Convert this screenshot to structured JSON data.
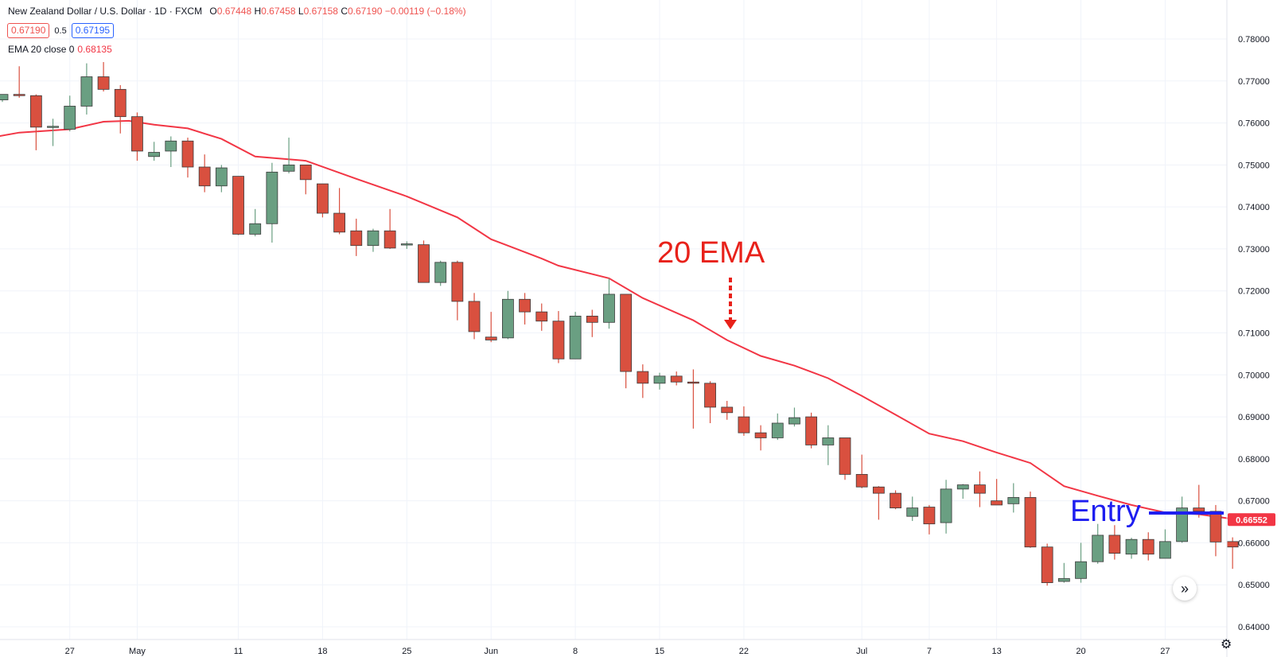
{
  "header": {
    "symbol": "New Zealand Dollar / U.S. Dollar · 1D · FXCM",
    "open_label": "O",
    "open": "0.67448",
    "high_label": "H",
    "high": "0.67458",
    "low_label": "L",
    "low": "0.67158",
    "close_label": "C",
    "close": "0.67190",
    "change": "−0.00119 (−0.18%)"
  },
  "quote": {
    "sell": "0.67190",
    "spread": "0.5",
    "buy": "0.67195"
  },
  "indicator": {
    "label": "EMA 20 close 0",
    "value": "0.68135"
  },
  "annotations": {
    "ema_label": "20 EMA",
    "entry_label": "Entry",
    "entry_price": 0.6671
  },
  "last_price_label": "0.66552",
  "colors": {
    "up": "#6a9f82",
    "down": "#d9503f",
    "ema": "#f23645",
    "entry": "#1e1ef0",
    "grid": "#f0f3fa",
    "annotation_red": "#e8211a"
  },
  "icons": {
    "scroll_right": "double-chevron-right-icon",
    "settings": "gear-icon"
  },
  "chart_data": {
    "type": "candlestick",
    "ylim": [
      0.635,
      0.7825
    ],
    "yticks": [
      "0.78000",
      "0.77000",
      "0.76000",
      "0.75000",
      "0.74000",
      "0.73000",
      "0.72000",
      "0.71000",
      "0.70000",
      "0.69000",
      "0.68000",
      "0.67000",
      "0.66000",
      "0.65000",
      "0.64000"
    ],
    "xticks": [
      {
        "label": "27",
        "i": 4
      },
      {
        "label": "May",
        "i": 8
      },
      {
        "label": "11",
        "i": 14
      },
      {
        "label": "18",
        "i": 19
      },
      {
        "label": "25",
        "i": 24
      },
      {
        "label": "Jun",
        "i": 29
      },
      {
        "label": "8",
        "i": 34
      },
      {
        "label": "15",
        "i": 39
      },
      {
        "label": "22",
        "i": 44
      },
      {
        "label": "Jul",
        "i": 51
      },
      {
        "label": "7",
        "i": 55
      },
      {
        "label": "13",
        "i": 59
      },
      {
        "label": "20",
        "i": 64
      },
      {
        "label": "27",
        "i": 69
      }
    ],
    "candles": [
      {
        "o": 0.7655,
        "h": 0.7668,
        "l": 0.765,
        "c": 0.7668
      },
      {
        "o": 0.7668,
        "h": 0.7735,
        "l": 0.766,
        "c": 0.7665
      },
      {
        "o": 0.7665,
        "h": 0.7668,
        "l": 0.7535,
        "c": 0.759
      },
      {
        "o": 0.759,
        "h": 0.761,
        "l": 0.7545,
        "c": 0.7592
      },
      {
        "o": 0.7585,
        "h": 0.7665,
        "l": 0.758,
        "c": 0.764
      },
      {
        "o": 0.764,
        "h": 0.7742,
        "l": 0.762,
        "c": 0.771
      },
      {
        "o": 0.771,
        "h": 0.7745,
        "l": 0.7675,
        "c": 0.768
      },
      {
        "o": 0.768,
        "h": 0.769,
        "l": 0.7575,
        "c": 0.7615
      },
      {
        "o": 0.7615,
        "h": 0.7625,
        "l": 0.751,
        "c": 0.7533
      },
      {
        "o": 0.752,
        "h": 0.7555,
        "l": 0.751,
        "c": 0.753
      },
      {
        "o": 0.7533,
        "h": 0.7568,
        "l": 0.7495,
        "c": 0.7557
      },
      {
        "o": 0.7557,
        "h": 0.7565,
        "l": 0.747,
        "c": 0.7495
      },
      {
        "o": 0.7495,
        "h": 0.7525,
        "l": 0.7435,
        "c": 0.745
      },
      {
        "o": 0.745,
        "h": 0.75,
        "l": 0.7435,
        "c": 0.7493
      },
      {
        "o": 0.7473,
        "h": 0.7473,
        "l": 0.7333,
        "c": 0.7335
      },
      {
        "o": 0.7335,
        "h": 0.7395,
        "l": 0.733,
        "c": 0.736
      },
      {
        "o": 0.736,
        "h": 0.7505,
        "l": 0.7315,
        "c": 0.7483
      },
      {
        "o": 0.7485,
        "h": 0.7565,
        "l": 0.748,
        "c": 0.75
      },
      {
        "o": 0.75,
        "h": 0.75,
        "l": 0.743,
        "c": 0.7465
      },
      {
        "o": 0.7455,
        "h": 0.7455,
        "l": 0.7375,
        "c": 0.7385
      },
      {
        "o": 0.7385,
        "h": 0.7445,
        "l": 0.7335,
        "c": 0.734
      },
      {
        "o": 0.7343,
        "h": 0.7372,
        "l": 0.7283,
        "c": 0.7308
      },
      {
        "o": 0.7308,
        "h": 0.7348,
        "l": 0.7293,
        "c": 0.7343
      },
      {
        "o": 0.7343,
        "h": 0.7395,
        "l": 0.73,
        "c": 0.7302
      },
      {
        "o": 0.731,
        "h": 0.7318,
        "l": 0.73,
        "c": 0.7312
      },
      {
        "o": 0.731,
        "h": 0.732,
        "l": 0.722,
        "c": 0.722
      },
      {
        "o": 0.722,
        "h": 0.7272,
        "l": 0.7212,
        "c": 0.7268
      },
      {
        "o": 0.7268,
        "h": 0.7272,
        "l": 0.713,
        "c": 0.7175
      },
      {
        "o": 0.7175,
        "h": 0.7195,
        "l": 0.7085,
        "c": 0.7103
      },
      {
        "o": 0.709,
        "h": 0.715,
        "l": 0.7078,
        "c": 0.7083
      },
      {
        "o": 0.7088,
        "h": 0.72,
        "l": 0.7085,
        "c": 0.718
      },
      {
        "o": 0.718,
        "h": 0.7195,
        "l": 0.712,
        "c": 0.715
      },
      {
        "o": 0.715,
        "h": 0.717,
        "l": 0.7105,
        "c": 0.7128
      },
      {
        "o": 0.7128,
        "h": 0.7152,
        "l": 0.7028,
        "c": 0.7038
      },
      {
        "o": 0.7038,
        "h": 0.715,
        "l": 0.7038,
        "c": 0.714
      },
      {
        "o": 0.714,
        "h": 0.7155,
        "l": 0.709,
        "c": 0.7125
      },
      {
        "o": 0.7125,
        "h": 0.723,
        "l": 0.711,
        "c": 0.7192
      },
      {
        "o": 0.7192,
        "h": 0.7192,
        "l": 0.6968,
        "c": 0.7008
      },
      {
        "o": 0.7008,
        "h": 0.7025,
        "l": 0.6945,
        "c": 0.698
      },
      {
        "o": 0.698,
        "h": 0.7005,
        "l": 0.6965,
        "c": 0.6997
      },
      {
        "o": 0.6997,
        "h": 0.7008,
        "l": 0.6975,
        "c": 0.6983
      },
      {
        "o": 0.6983,
        "h": 0.7013,
        "l": 0.6872,
        "c": 0.698
      },
      {
        "o": 0.698,
        "h": 0.6985,
        "l": 0.6885,
        "c": 0.6923
      },
      {
        "o": 0.6923,
        "h": 0.6938,
        "l": 0.6893,
        "c": 0.691
      },
      {
        "o": 0.69,
        "h": 0.6925,
        "l": 0.6855,
        "c": 0.6862
      },
      {
        "o": 0.6862,
        "h": 0.688,
        "l": 0.682,
        "c": 0.685
      },
      {
        "o": 0.685,
        "h": 0.6908,
        "l": 0.6845,
        "c": 0.6885
      },
      {
        "o": 0.6883,
        "h": 0.6922,
        "l": 0.6877,
        "c": 0.6898
      },
      {
        "o": 0.69,
        "h": 0.691,
        "l": 0.6825,
        "c": 0.6833
      },
      {
        "o": 0.6833,
        "h": 0.688,
        "l": 0.6785,
        "c": 0.685
      },
      {
        "o": 0.685,
        "h": 0.685,
        "l": 0.675,
        "c": 0.6763
      },
      {
        "o": 0.6763,
        "h": 0.681,
        "l": 0.673,
        "c": 0.6733
      },
      {
        "o": 0.6733,
        "h": 0.6735,
        "l": 0.6655,
        "c": 0.6718
      },
      {
        "o": 0.6718,
        "h": 0.6725,
        "l": 0.668,
        "c": 0.6683
      },
      {
        "o": 0.6663,
        "h": 0.671,
        "l": 0.6652,
        "c": 0.6683
      },
      {
        "o": 0.6685,
        "h": 0.669,
        "l": 0.662,
        "c": 0.6645
      },
      {
        "o": 0.6648,
        "h": 0.675,
        "l": 0.6622,
        "c": 0.6728
      },
      {
        "o": 0.6728,
        "h": 0.674,
        "l": 0.6705,
        "c": 0.6738
      },
      {
        "o": 0.6738,
        "h": 0.677,
        "l": 0.6685,
        "c": 0.6718
      },
      {
        "o": 0.67,
        "h": 0.6752,
        "l": 0.669,
        "c": 0.669
      },
      {
        "o": 0.6693,
        "h": 0.6742,
        "l": 0.6672,
        "c": 0.6708
      },
      {
        "o": 0.6708,
        "h": 0.6722,
        "l": 0.6588,
        "c": 0.659
      },
      {
        "o": 0.659,
        "h": 0.6598,
        "l": 0.6498,
        "c": 0.6505
      },
      {
        "o": 0.6508,
        "h": 0.6552,
        "l": 0.6505,
        "c": 0.6515
      },
      {
        "o": 0.6515,
        "h": 0.66,
        "l": 0.6505,
        "c": 0.6555
      },
      {
        "o": 0.6555,
        "h": 0.6645,
        "l": 0.655,
        "c": 0.6618
      },
      {
        "o": 0.6618,
        "h": 0.6642,
        "l": 0.656,
        "c": 0.6575
      },
      {
        "o": 0.6573,
        "h": 0.6612,
        "l": 0.6562,
        "c": 0.6608
      },
      {
        "o": 0.6608,
        "h": 0.6625,
        "l": 0.6558,
        "c": 0.6573
      },
      {
        "o": 0.6563,
        "h": 0.6632,
        "l": 0.6563,
        "c": 0.6603
      },
      {
        "o": 0.6603,
        "h": 0.671,
        "l": 0.66,
        "c": 0.6683
      },
      {
        "o": 0.6683,
        "h": 0.6738,
        "l": 0.666,
        "c": 0.6675
      },
      {
        "o": 0.6675,
        "h": 0.669,
        "l": 0.6568,
        "c": 0.6602
      },
      {
        "o": 0.6603,
        "h": 0.6613,
        "l": 0.6538,
        "c": 0.659
      }
    ],
    "ema": [
      {
        "i": -0.4,
        "v": 0.7567
      },
      {
        "i": 1,
        "v": 0.7577
      },
      {
        "i": 4,
        "v": 0.7585
      },
      {
        "i": 6,
        "v": 0.7603
      },
      {
        "i": 7.5,
        "v": 0.7605
      },
      {
        "i": 9,
        "v": 0.7596
      },
      {
        "i": 11,
        "v": 0.7587
      },
      {
        "i": 13,
        "v": 0.7562
      },
      {
        "i": 15,
        "v": 0.752
      },
      {
        "i": 18,
        "v": 0.751
      },
      {
        "i": 21,
        "v": 0.7467
      },
      {
        "i": 24,
        "v": 0.7425
      },
      {
        "i": 27,
        "v": 0.7375
      },
      {
        "i": 29,
        "v": 0.7323
      },
      {
        "i": 32,
        "v": 0.7277
      },
      {
        "i": 33,
        "v": 0.726
      },
      {
        "i": 36,
        "v": 0.723
      },
      {
        "i": 38,
        "v": 0.7183
      },
      {
        "i": 41,
        "v": 0.713
      },
      {
        "i": 43,
        "v": 0.7083
      },
      {
        "i": 45,
        "v": 0.7045
      },
      {
        "i": 47,
        "v": 0.7022
      },
      {
        "i": 49,
        "v": 0.6992
      },
      {
        "i": 51,
        "v": 0.695
      },
      {
        "i": 53,
        "v": 0.6905
      },
      {
        "i": 55,
        "v": 0.686
      },
      {
        "i": 57,
        "v": 0.6842
      },
      {
        "i": 59,
        "v": 0.6815
      },
      {
        "i": 61,
        "v": 0.679
      },
      {
        "i": 63,
        "v": 0.6735
      },
      {
        "i": 65,
        "v": 0.6712
      },
      {
        "i": 67,
        "v": 0.669
      },
      {
        "i": 69,
        "v": 0.6672
      },
      {
        "i": 71,
        "v": 0.6668
      },
      {
        "i": 73.3,
        "v": 0.6655
      }
    ]
  }
}
